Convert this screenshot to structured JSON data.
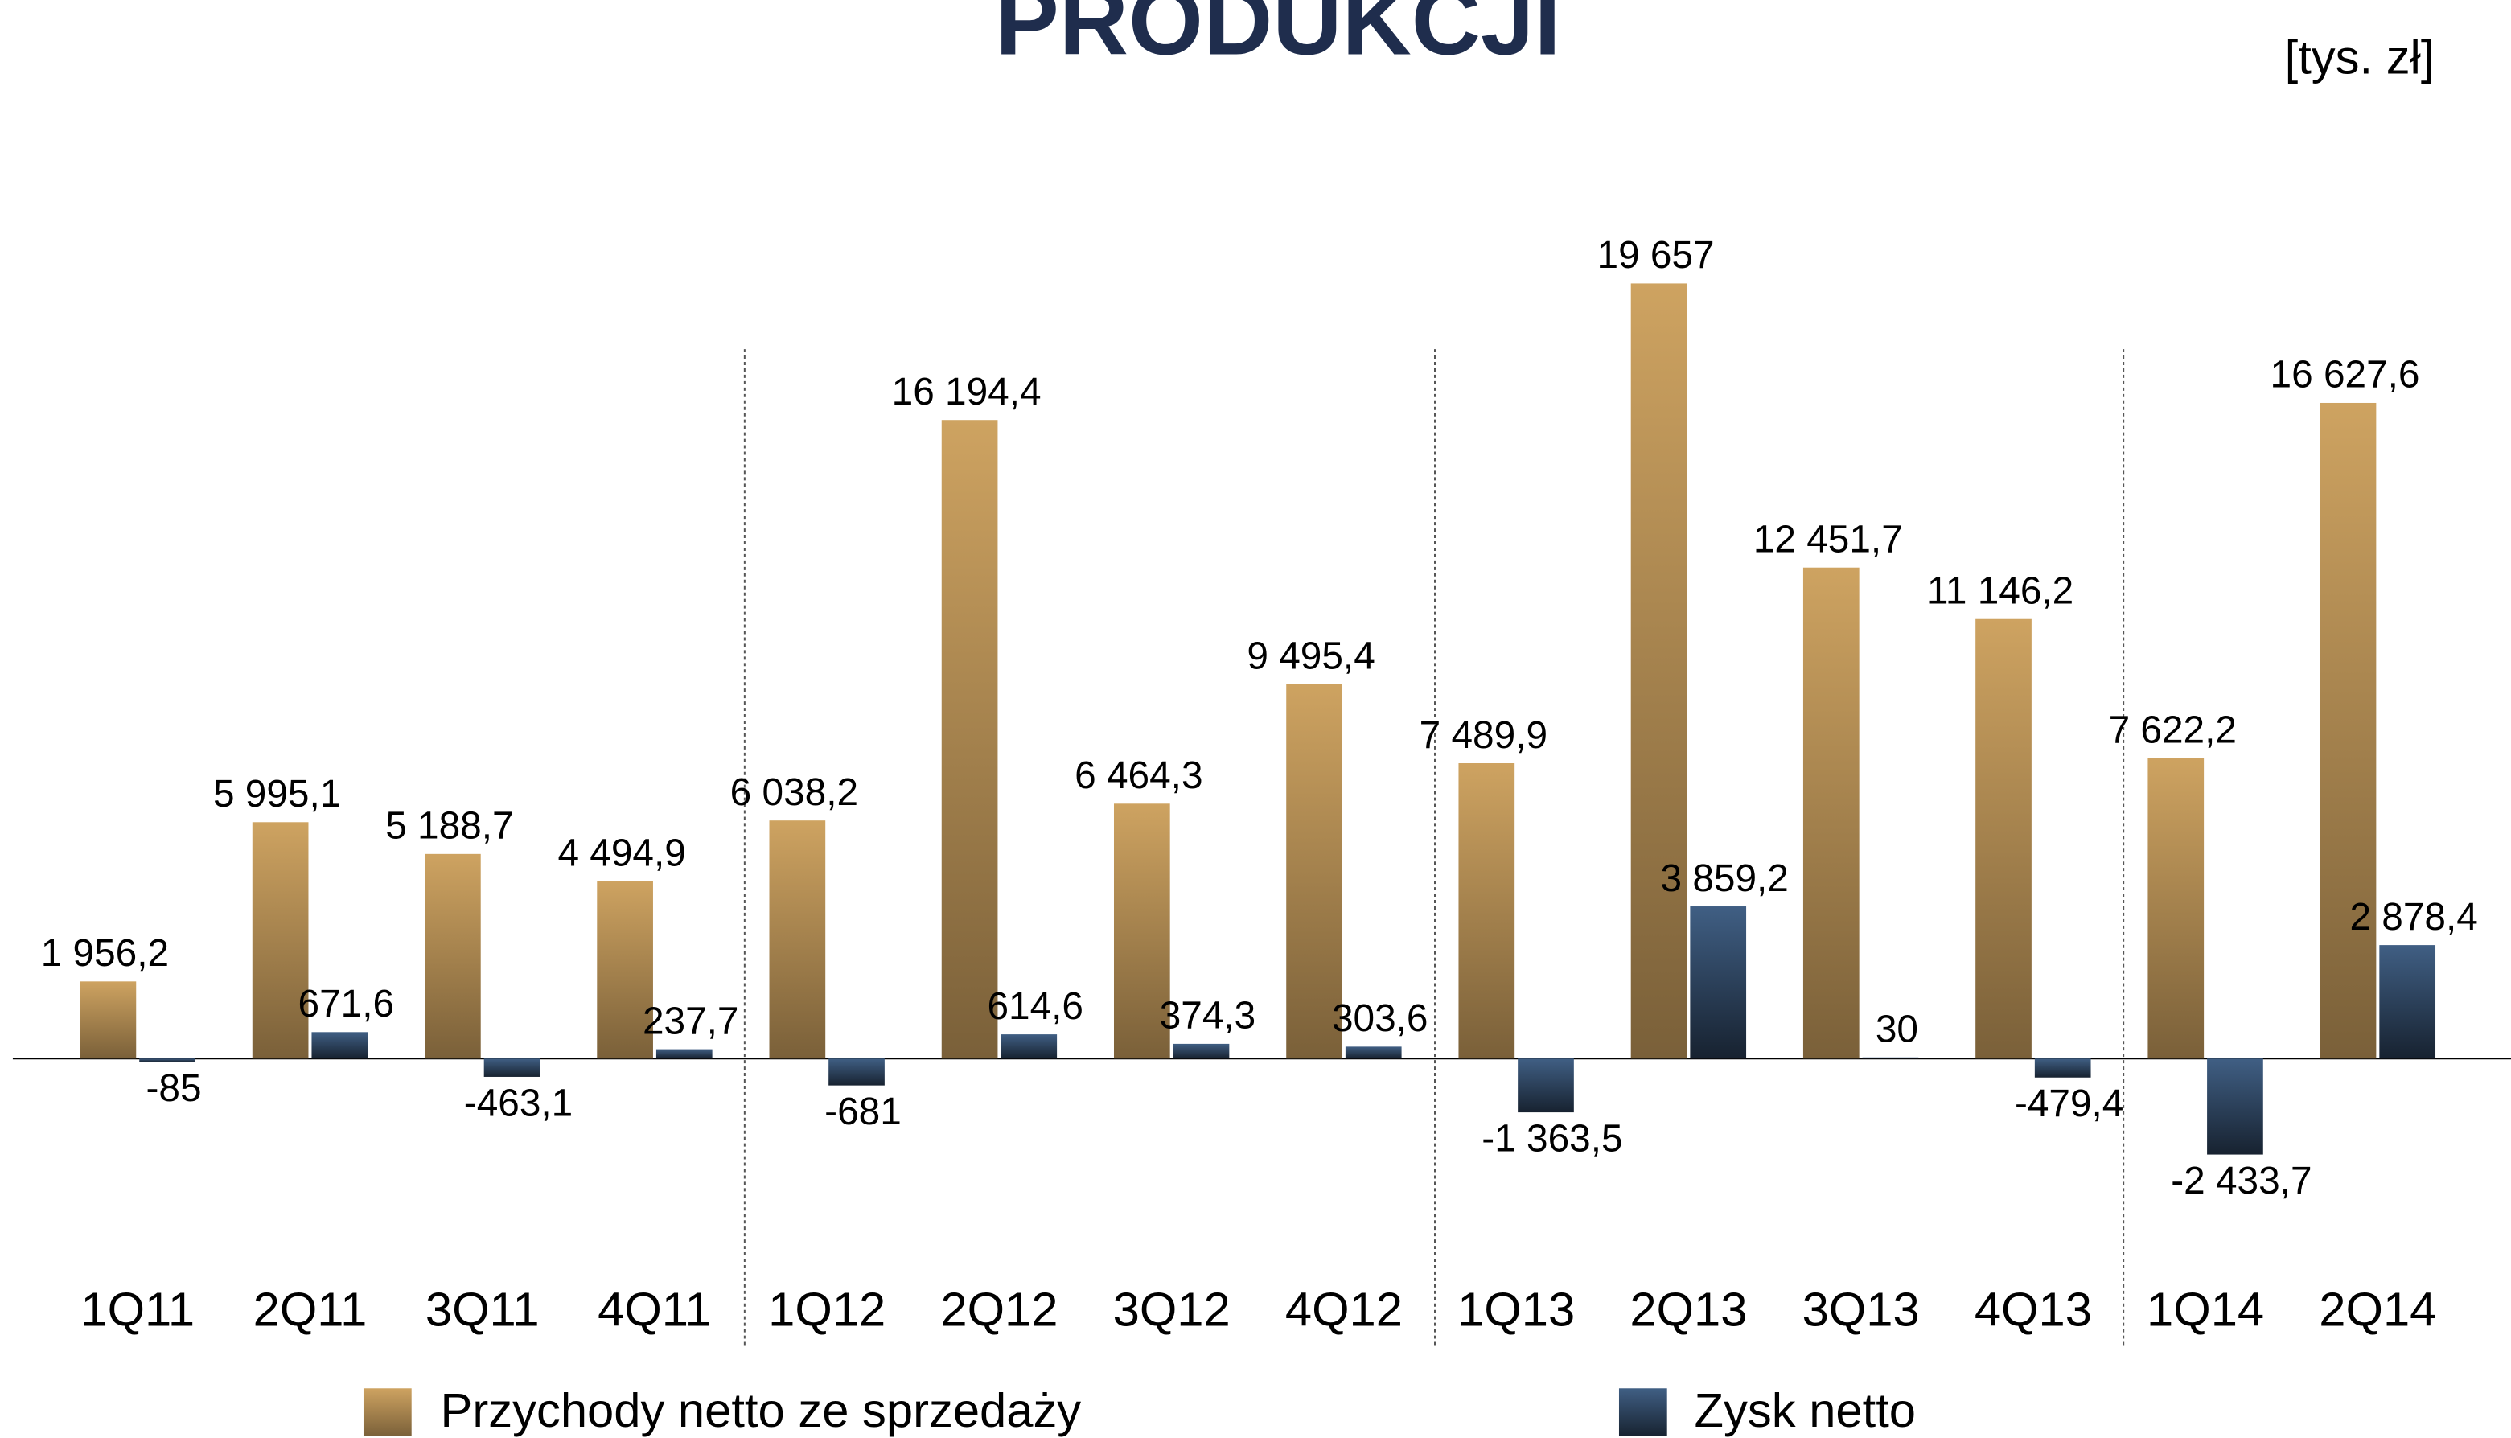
{
  "chart_data": {
    "type": "bar",
    "title": "PRODUKCJI",
    "unit": "[tys. zł]",
    "categories": [
      "1Q11",
      "2Q11",
      "3Q11",
      "4Q11",
      "1Q12",
      "2Q12",
      "3Q12",
      "4Q12",
      "1Q13",
      "2Q13",
      "3Q13",
      "4Q13",
      "1Q14",
      "2Q14"
    ],
    "series": [
      {
        "name": "Przychody netto ze sprzedaży",
        "color": "#bb9458",
        "values": [
          1956.2,
          5995.1,
          5188.7,
          4494.9,
          6038.2,
          16194.4,
          6464.3,
          9495.4,
          7489.9,
          19657,
          12451.7,
          11146.2,
          7622.2,
          16627.6
        ],
        "value_labels": [
          "1 956,2",
          "5 995,1",
          "5 188,7",
          "4 494,9",
          "6 038,2",
          "16 194,4",
          "6 464,3",
          "9 495,4",
          "7 489,9",
          "19 657",
          "12 451,7",
          "11 146,2",
          "7 622,2",
          "16 627,6"
        ]
      },
      {
        "name": "Zysk netto",
        "color": "#3a5678",
        "values": [
          -85,
          671.6,
          -463.1,
          237.7,
          -681,
          614.6,
          374.3,
          303.6,
          -1363.5,
          3859.2,
          30,
          -479.4,
          -2433.7,
          2878.4
        ],
        "value_labels": [
          "-85",
          "671,6",
          "-463,1",
          "237,7",
          "-681",
          "614,6",
          "374,3",
          "303,6",
          "-1 363,5",
          "3 859,2",
          "30",
          "-479,4",
          "-2 433,7",
          "2 878,4"
        ]
      }
    ],
    "legend": "bottom"
  }
}
